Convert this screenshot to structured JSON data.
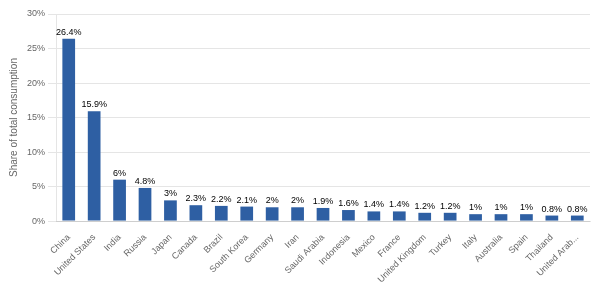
{
  "chart_data": {
    "type": "bar",
    "categories": [
      "China",
      "United States",
      "India",
      "Russia",
      "Japan",
      "Canada",
      "Brazil",
      "South Korea",
      "Germany",
      "Iran",
      "Saudi Arabia",
      "Indonesia",
      "Mexico",
      "France",
      "United Kingdom",
      "Turkey",
      "Italy",
      "Australia",
      "Spain",
      "Thailand",
      "United Arab..."
    ],
    "values": [
      26.4,
      15.9,
      6.0,
      4.8,
      3.0,
      2.3,
      2.2,
      2.1,
      2.0,
      2.0,
      1.9,
      1.6,
      1.4,
      1.4,
      1.2,
      1.2,
      1.0,
      1.0,
      1.0,
      0.8,
      0.8
    ],
    "value_labels": [
      "26.4%",
      "15.9%",
      "6%",
      "4.8%",
      "3%",
      "2.3%",
      "2.2%",
      "2.1%",
      "2%",
      "2%",
      "1.9%",
      "1.6%",
      "1.4%",
      "1.4%",
      "1.2%",
      "1.2%",
      "1%",
      "1%",
      "1%",
      "0.8%",
      "0.8%"
    ],
    "data_labels": true,
    "color": "#2E5FA3",
    "ylabel": "Share of total consumption",
    "ylim": [
      0,
      30
    ],
    "yticks": [
      {
        "value": 0,
        "label": "0%"
      },
      {
        "value": 5,
        "label": "5%"
      },
      {
        "value": 10,
        "label": "10%"
      },
      {
        "value": 15,
        "label": "15%"
      },
      {
        "value": 20,
        "label": "20%"
      },
      {
        "value": 25,
        "label": "25%"
      },
      {
        "value": 30,
        "label": "30%"
      }
    ],
    "grid": true
  }
}
